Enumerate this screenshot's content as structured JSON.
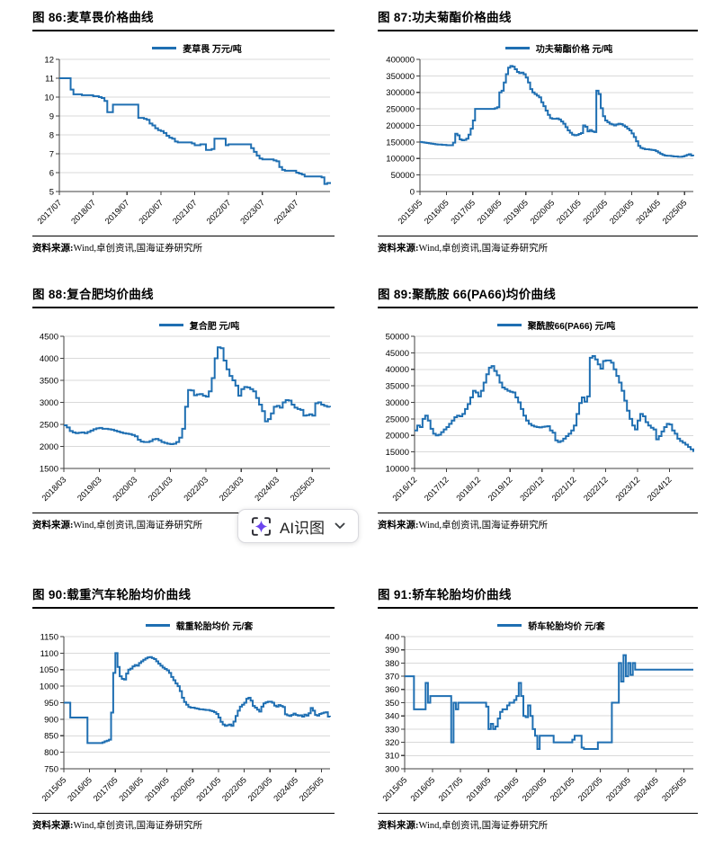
{
  "colors": {
    "line": "#1F6FB2",
    "grid": "#D9D9D9",
    "axis": "#404040",
    "text": "#000000",
    "title_rule": "#000000",
    "ai_icon_purple": "#6C45EE",
    "ai_bracket": "#2B2B33"
  },
  "ai_button": {
    "label": "AI识图",
    "icon": "ai-scan-sparkle-icon",
    "chevron": "chevron-down-icon"
  },
  "source": {
    "prefix": "资料来源:",
    "text": "Wind,卓创资讯,国海证券研究所"
  },
  "chart_data": [
    {
      "id": "fig-86",
      "type": "line",
      "title": "图 86:麦草畏价格曲线",
      "legend": "麦草畏 万元/吨",
      "unit": "万元/吨",
      "ylim": [
        5,
        12
      ],
      "y_step": 1,
      "grid": "horizontal",
      "legend_position": "top",
      "x_tick_every": 12,
      "x_ticks": [
        "2017/07",
        "2018/07",
        "2019/07",
        "2020/07",
        "2021/07",
        "2022/07",
        "2023/07",
        "2024/07"
      ],
      "values": [
        11,
        11,
        11,
        11,
        10.4,
        10.15,
        10.15,
        10.15,
        10.1,
        10.1,
        10.1,
        10.1,
        10.05,
        10.05,
        10,
        9.95,
        9.8,
        9.2,
        9.2,
        9.6,
        9.6,
        9.6,
        9.6,
        9.6,
        9.6,
        9.6,
        9.6,
        9.6,
        8.9,
        8.9,
        8.85,
        8.8,
        8.6,
        8.5,
        8.35,
        8.25,
        8.2,
        8.1,
        7.95,
        7.85,
        7.8,
        7.65,
        7.6,
        7.6,
        7.6,
        7.6,
        7.6,
        7.55,
        7.45,
        7.45,
        7.5,
        7.5,
        7.2,
        7.2,
        7.25,
        7.8,
        7.8,
        7.8,
        7.8,
        7.45,
        7.5,
        7.5,
        7.5,
        7.5,
        7.5,
        7.5,
        7.5,
        7.5,
        7.3,
        7.1,
        6.9,
        6.75,
        6.7,
        6.7,
        6.7,
        6.7,
        6.65,
        6.6,
        6.3,
        6.15,
        6.1,
        6.1,
        6.1,
        6.1,
        6,
        5.95,
        5.9,
        5.8,
        5.8,
        5.8,
        5.8,
        5.8,
        5.8,
        5.75,
        5.4,
        5.45,
        5.4
      ]
    },
    {
      "id": "fig-87",
      "type": "line",
      "title": "图 87:功夫菊酯价格曲线",
      "legend": "功夫菊酯价格 元/吨",
      "unit": "元/吨",
      "ylim": [
        0,
        400000
      ],
      "y_step": 50000,
      "grid": "horizontal",
      "legend_position": "top",
      "x_tick_every": 12,
      "x_ticks": [
        "2015/05",
        "2016/05",
        "2017/05",
        "2018/05",
        "2019/05",
        "2020/05",
        "2021/05",
        "2022/05",
        "2023/05",
        "2024/05",
        "2025/05"
      ],
      "values": [
        150000,
        149000,
        148000,
        147000,
        146000,
        145000,
        144000,
        143000,
        142000,
        142000,
        141000,
        141000,
        140000,
        140000,
        140000,
        148000,
        175000,
        170000,
        158000,
        155000,
        156000,
        160000,
        172000,
        190000,
        215000,
        250000,
        250000,
        250000,
        250000,
        250000,
        250000,
        250000,
        250000,
        250000,
        252000,
        255000,
        300000,
        305000,
        330000,
        355000,
        375000,
        380000,
        378000,
        370000,
        362000,
        358000,
        360000,
        355000,
        345000,
        330000,
        310000,
        300000,
        295000,
        290000,
        285000,
        270000,
        258000,
        245000,
        232000,
        222000,
        220000,
        220000,
        221000,
        218000,
        212000,
        205000,
        195000,
        185000,
        178000,
        172000,
        170000,
        171000,
        174000,
        177000,
        200000,
        196000,
        182000,
        186000,
        182000,
        180000,
        305000,
        295000,
        252000,
        228000,
        215000,
        210000,
        205000,
        203000,
        200000,
        203000,
        205000,
        204000,
        200000,
        196000,
        190000,
        185000,
        176000,
        165000,
        152000,
        138000,
        132000,
        130000,
        128000,
        128000,
        127000,
        126000,
        125000,
        122000,
        118000,
        114000,
        111000,
        109000,
        108000,
        108000,
        107000,
        106000,
        106000,
        105000,
        105000,
        106000,
        108000,
        111000,
        113000,
        109000,
        107000
      ]
    },
    {
      "id": "fig-88",
      "type": "line",
      "title": "图 88:复合肥均价曲线",
      "legend": "复合肥  元/吨",
      "unit": "元/吨",
      "ylim": [
        1500,
        4500
      ],
      "y_step": 500,
      "grid": "horizontal",
      "legend_position": "top",
      "x_tick_every": 12,
      "x_ticks": [
        "2018/03",
        "2019/03",
        "2020/03",
        "2021/03",
        "2022/03",
        "2023/03",
        "2024/03",
        "2025/03"
      ],
      "values": [
        2480,
        2430,
        2350,
        2320,
        2300,
        2310,
        2320,
        2300,
        2330,
        2360,
        2390,
        2410,
        2420,
        2400,
        2400,
        2390,
        2380,
        2360,
        2340,
        2320,
        2300,
        2290,
        2280,
        2260,
        2230,
        2150,
        2110,
        2100,
        2100,
        2120,
        2160,
        2170,
        2140,
        2100,
        2080,
        2060,
        2050,
        2060,
        2100,
        2200,
        2400,
        2900,
        3280,
        3270,
        3160,
        3180,
        3190,
        3150,
        3130,
        3250,
        3550,
        4000,
        4250,
        4230,
        3950,
        3750,
        3600,
        3500,
        3380,
        3150,
        3300,
        3350,
        3340,
        3300,
        3250,
        3100,
        2950,
        2800,
        2570,
        2620,
        2750,
        2900,
        2920,
        2880,
        3000,
        3050,
        3040,
        2950,
        2880,
        2850,
        2830,
        2700,
        2710,
        2730,
        2700,
        2980,
        3000,
        2950,
        2920,
        2900,
        2890
      ]
    },
    {
      "id": "fig-89",
      "type": "line",
      "title": "图 89:聚酰胺 66(PA66)均价曲线",
      "legend": "聚酰胺66(PA66)  元/吨",
      "unit": "元/吨",
      "ylim": [
        10000,
        50000
      ],
      "y_step": 5000,
      "grid": "horizontal",
      "legend_position": "top",
      "x_tick_every": 12,
      "x_ticks": [
        "2016/12",
        "2017/12",
        "2018/12",
        "2019/12",
        "2020/12",
        "2021/12",
        "2022/12",
        "2023/12",
        "2024/12"
      ],
      "values": [
        21500,
        23000,
        22500,
        25000,
        26000,
        24500,
        22000,
        20500,
        20000,
        20200,
        21000,
        21800,
        22500,
        23500,
        24500,
        25500,
        26000,
        25800,
        26500,
        28000,
        29500,
        31500,
        33500,
        33000,
        31800,
        33500,
        36000,
        38500,
        40500,
        41000,
        39500,
        38200,
        36000,
        34500,
        34000,
        33500,
        33200,
        33000,
        31500,
        30000,
        28000,
        26000,
        24500,
        23500,
        23000,
        22700,
        22500,
        22400,
        22600,
        22700,
        22800,
        21500,
        20800,
        18500,
        18000,
        18300,
        19000,
        19800,
        20500,
        21500,
        23000,
        26500,
        29800,
        31500,
        30200,
        31800,
        43500,
        44000,
        43000,
        41500,
        40200,
        42500,
        42700,
        42700,
        42000,
        40000,
        38000,
        36000,
        33500,
        30500,
        27500,
        25000,
        23000,
        21800,
        24500,
        26500,
        25800,
        24000,
        23000,
        22300,
        21800,
        18800,
        19800,
        21200,
        22500,
        23500,
        23300,
        21500,
        20500,
        19000,
        18300,
        17800,
        17200,
        16500,
        15800,
        15000
      ]
    },
    {
      "id": "fig-90",
      "type": "line",
      "title": "图 90:载重汽车轮胎均价曲线",
      "legend": "载重轮胎均价 元/套",
      "unit": "元/套",
      "ylim": [
        750,
        1150
      ],
      "y_step": 50,
      "grid": "horizontal",
      "legend_position": "top",
      "x_tick_every": 12,
      "x_ticks": [
        "2015/05",
        "2016/05",
        "2017/05",
        "2018/05",
        "2019/05",
        "2020/05",
        "2021/05",
        "2022/05",
        "2023/05",
        "2024/05",
        "2025/05"
      ],
      "values": [
        950,
        950,
        950,
        905,
        905,
        905,
        905,
        905,
        905,
        905,
        905,
        828,
        828,
        828,
        828,
        828,
        828,
        828,
        830,
        833,
        835,
        838,
        920,
        1040,
        1100,
        1058,
        1030,
        1022,
        1020,
        1038,
        1050,
        1053,
        1060,
        1064,
        1062,
        1070,
        1075,
        1080,
        1084,
        1087,
        1088,
        1085,
        1082,
        1075,
        1068,
        1062,
        1056,
        1052,
        1048,
        1040,
        1028,
        1018,
        1008,
        1000,
        985,
        965,
        952,
        944,
        937,
        935,
        935,
        933,
        932,
        930,
        930,
        929,
        928,
        928,
        926,
        924,
        921,
        916,
        905,
        892,
        884,
        880,
        882,
        884,
        880,
        893,
        910,
        926,
        938,
        944,
        950,
        962,
        965,
        956,
        940,
        935,
        929,
        923,
        938,
        948,
        951,
        953,
        953,
        950,
        941,
        938,
        943,
        940,
        937,
        915,
        912,
        910,
        913,
        917,
        913,
        911,
        912,
        908,
        914,
        911,
        918,
        934,
        926,
        913,
        911,
        916,
        918,
        920,
        921,
        908,
        907
      ]
    },
    {
      "id": "fig-91",
      "type": "line",
      "title": "图 91:轿车轮胎均价曲线",
      "legend": "轿车轮胎均价 元/套",
      "unit": "元/套",
      "ylim": [
        300,
        400
      ],
      "y_step": 10,
      "grid": "horizontal",
      "legend_position": "top",
      "x_tick_every": 12,
      "x_ticks": [
        "2015/05",
        "2016/05",
        "2017/05",
        "2018/05",
        "2019/05",
        "2020/05",
        "2021/05",
        "2022/05",
        "2023/05",
        "2024/05",
        "2025/05"
      ],
      "values": [
        370,
        370,
        370,
        370,
        345,
        345,
        345,
        345,
        345,
        365,
        350,
        355,
        355,
        355,
        355,
        355,
        355,
        355,
        355,
        355,
        320,
        350,
        345,
        350,
        350,
        350,
        350,
        350,
        350,
        350,
        350,
        350,
        350,
        350,
        350,
        347,
        330,
        334,
        330,
        332,
        338,
        343,
        345,
        345,
        348,
        350,
        350,
        352,
        355,
        365,
        355,
        340,
        339,
        348,
        340,
        330,
        325,
        315,
        325,
        325,
        325,
        325,
        325,
        325,
        320,
        320,
        320,
        320,
        320,
        320,
        320,
        320,
        322,
        325,
        325,
        325,
        316,
        315,
        315,
        315,
        315,
        315,
        315,
        320,
        320,
        320,
        320,
        320,
        320,
        350,
        350,
        350,
        380,
        366,
        386,
        370,
        380,
        371,
        380,
        375,
        375,
        375,
        375,
        375,
        375,
        375,
        375,
        375,
        375,
        375,
        375,
        375,
        375,
        375,
        375,
        375,
        375,
        375,
        375,
        375,
        375,
        375,
        375,
        375,
        375
      ]
    }
  ]
}
